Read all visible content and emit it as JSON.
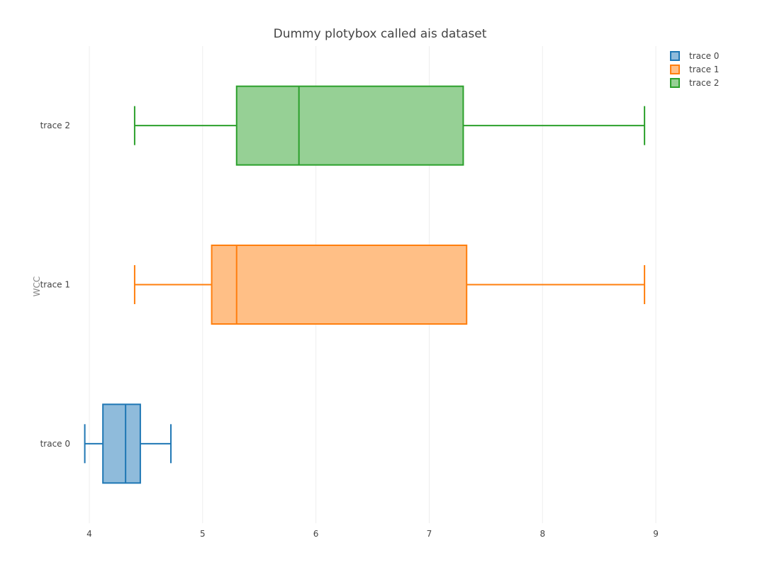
{
  "chart_data": {
    "type": "box",
    "orientation": "horizontal",
    "title": "Dummy plotybox called ais dataset",
    "xlabel": "",
    "ylabel": "WCC",
    "xlim": [
      3.9,
      9.5
    ],
    "x_ticks": [
      4,
      5,
      6,
      7,
      8,
      9
    ],
    "grid": true,
    "legend_position": "top-right",
    "categories": [
      "trace 0",
      "trace 1",
      "trace 2"
    ],
    "series": [
      {
        "name": "trace 0",
        "color": "#1f77b4",
        "fill": "#8fbbdb",
        "min": 3.96,
        "q1": 4.12,
        "median": 4.32,
        "q3": 4.45,
        "max": 4.72
      },
      {
        "name": "trace 1",
        "color": "#ff7f0e",
        "fill": "#ffbf86",
        "min": 4.4,
        "q1": 5.08,
        "median": 5.3,
        "q3": 7.33,
        "max": 8.9
      },
      {
        "name": "trace 2",
        "color": "#2ca02c",
        "fill": "#96d095",
        "min": 4.4,
        "q1": 5.3,
        "median": 5.85,
        "q3": 7.3,
        "max": 8.9
      }
    ]
  }
}
